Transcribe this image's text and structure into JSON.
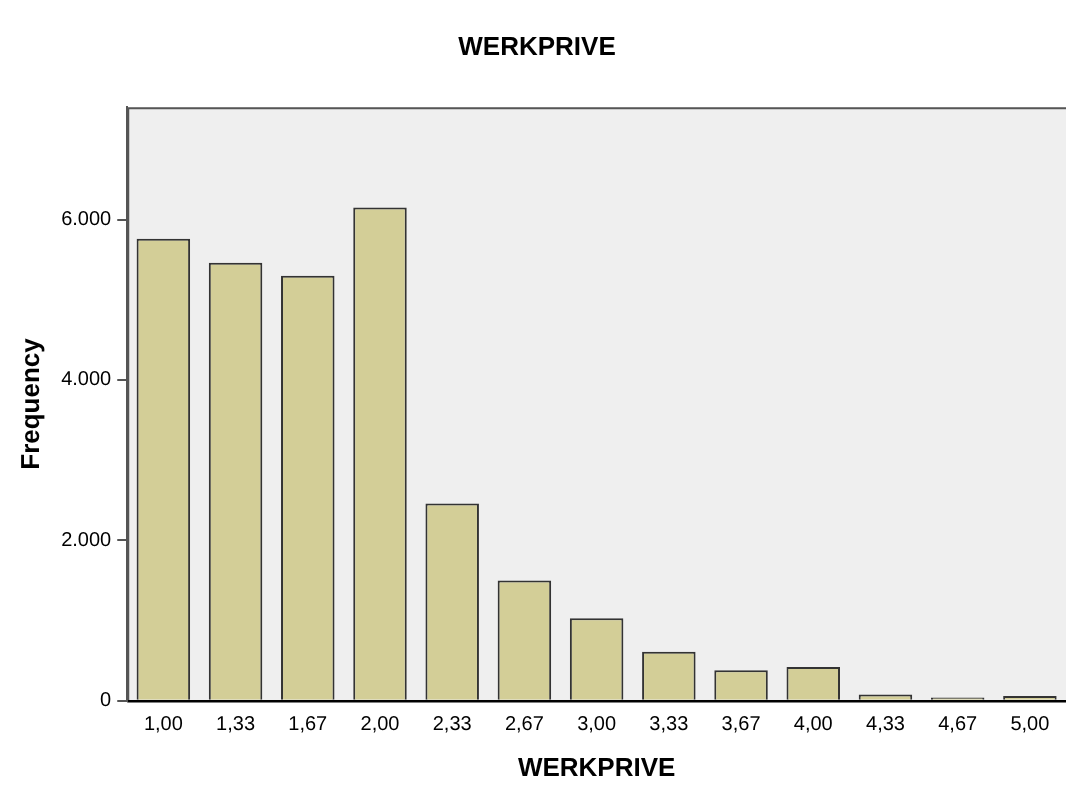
{
  "chart_data": {
    "type": "bar",
    "title": "WERKPRIVE",
    "xlabel": "WERKPRIVE",
    "ylabel": "Frequency",
    "categories": [
      "1,00",
      "1,33",
      "1,67",
      "2,00",
      "2,33",
      "2,67",
      "3,00",
      "3,33",
      "3,67",
      "4,00",
      "4,33",
      "4,67",
      "5,00"
    ],
    "values": [
      5760,
      5460,
      5300,
      6150,
      2460,
      1500,
      1030,
      610,
      380,
      420,
      80,
      40,
      60
    ],
    "color": "#d3ce97",
    "ylim": [
      0,
      7400
    ],
    "yticks": [
      0,
      {
        "value": 2000,
        "label": "2.000"
      },
      {
        "value": 4000,
        "label": "4.000"
      },
      {
        "value": 6000,
        "label": "6.000"
      }
    ],
    "grid": false,
    "legend": false
  }
}
